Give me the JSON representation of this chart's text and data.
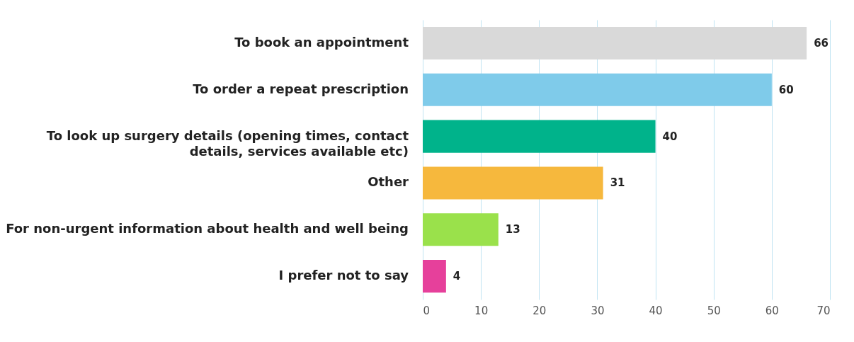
{
  "chart_data": {
    "type": "bar",
    "orientation": "horizontal",
    "categories": [
      "To book an appointment",
      "To order a repeat prescription",
      "To look up surgery details (opening times, contact\ndetails, services available etc)",
      "Other",
      "For non-urgent information about health and well being",
      "I prefer not to say"
    ],
    "values": [
      66,
      60,
      40,
      31,
      13,
      4
    ],
    "colors": [
      "#d9d9d9",
      "#7fcbea",
      "#00b38b",
      "#f6b83d",
      "#9ae14b",
      "#e6409b"
    ],
    "xlim": [
      0,
      70
    ],
    "xticks": [
      0,
      10,
      20,
      30,
      40,
      50,
      60,
      70
    ],
    "grid": "x",
    "data_labels": true
  }
}
